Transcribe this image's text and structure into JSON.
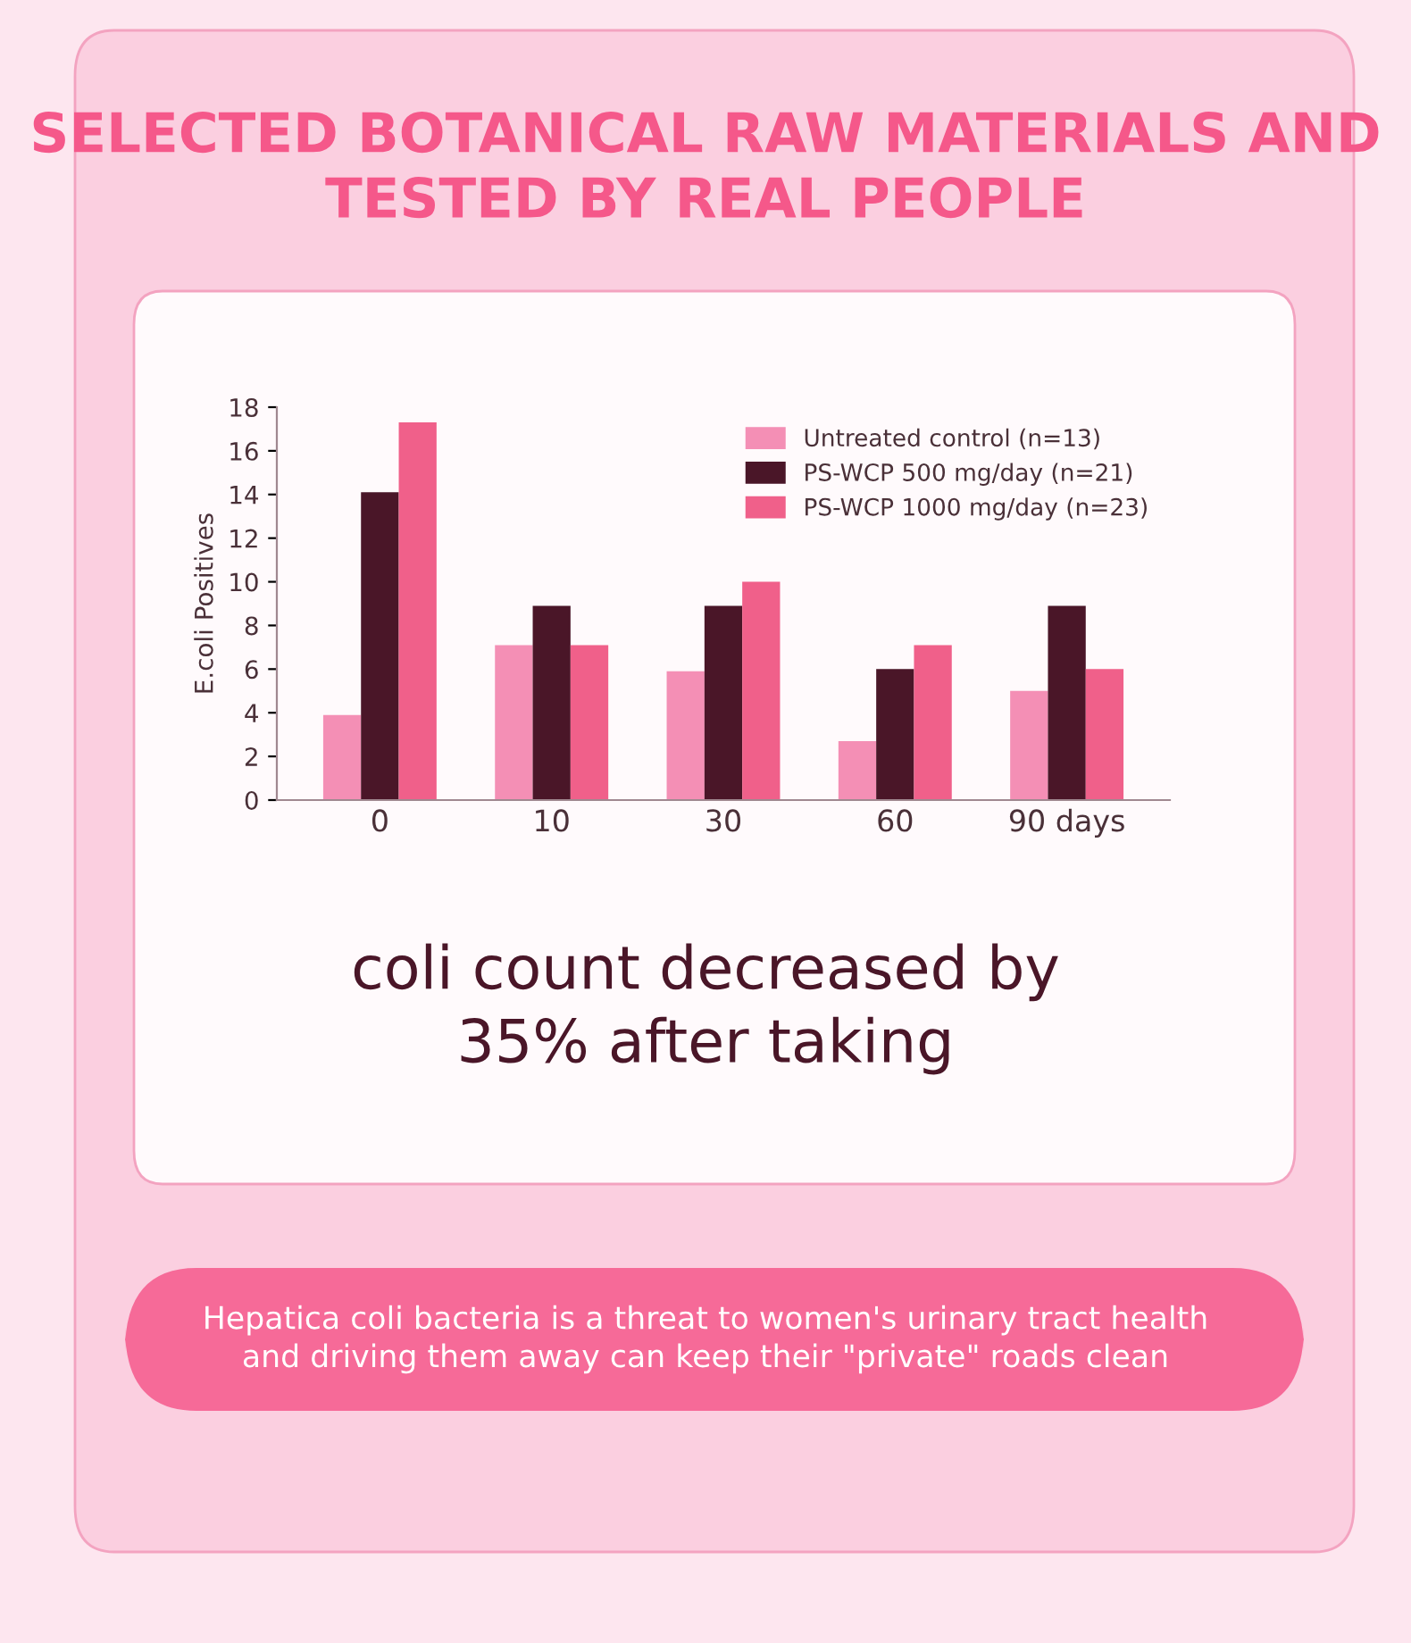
{
  "chart_data": {
    "type": "bar",
    "title": "SELECTED BOTANICAL RAW MATERIALS AND\nTESTED BY REAL PEOPLE",
    "ylabel": "E.coli Positives",
    "categories": [
      "0",
      "10",
      "30",
      "60",
      "90 days"
    ],
    "series": [
      {
        "name": "Untreated control (n=13)",
        "color": "#f48fb5",
        "values": [
          3.9,
          7.1,
          5.9,
          2.7,
          5.0
        ]
      },
      {
        "name": "PS-WCP 500 mg/day (n=21)",
        "color": "#4a1628",
        "values": [
          14.1,
          8.9,
          8.9,
          6.0,
          8.9
        ]
      },
      {
        "name": "PS-WCP 1000 mg/day (n=23)",
        "color": "#f0608a",
        "values": [
          17.3,
          7.1,
          10.0,
          7.1,
          6.0
        ]
      }
    ],
    "ylim": [
      0,
      18
    ],
    "yticks": [
      0,
      2,
      4,
      6,
      8,
      10,
      12,
      14,
      16,
      18
    ],
    "grid": false,
    "legend": "top right",
    "annotations": [
      "coli count decreased by\n35% after taking",
      "Hepatica coli bacteria is a threat to women's urinary tract health\nand driving them away can keep their \"private\" roads clean"
    ]
  }
}
